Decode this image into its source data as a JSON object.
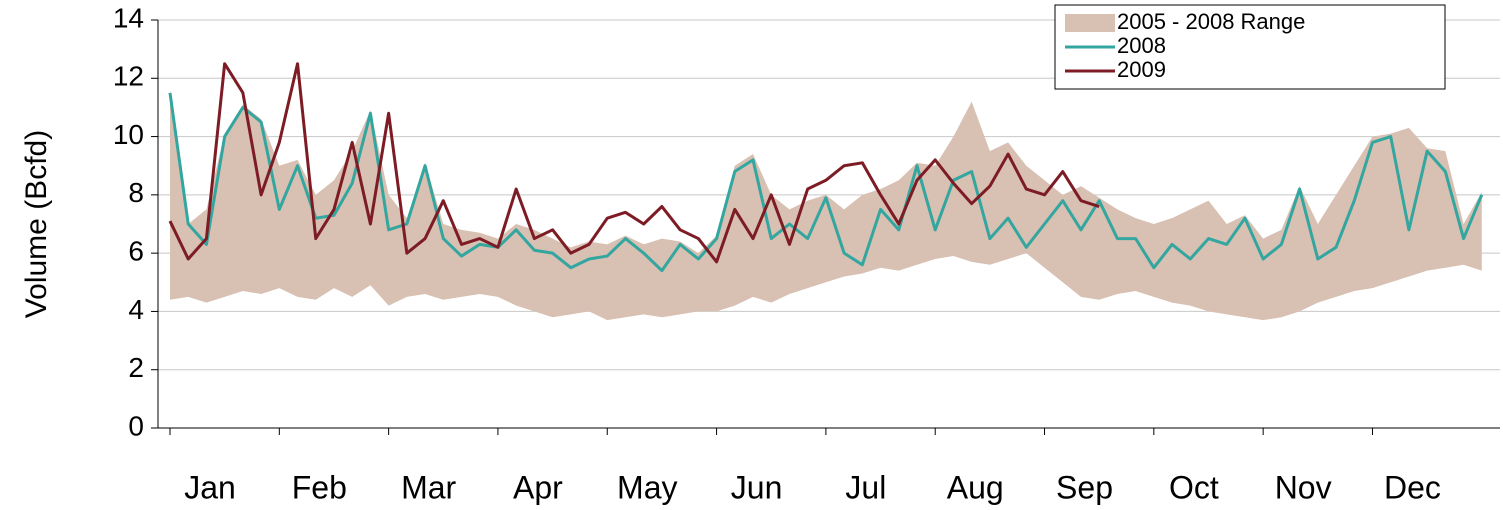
{
  "chart_data": {
    "type": "line",
    "y_label": "Volume (Bcfd)",
    "categories": [
      "Jan",
      null,
      null,
      null,
      null,
      null,
      "Feb",
      null,
      null,
      null,
      null,
      null,
      "Mar",
      null,
      null,
      null,
      null,
      null,
      "Apr",
      null,
      null,
      null,
      null,
      null,
      "May",
      null,
      null,
      null,
      null,
      null,
      "Jun",
      null,
      null,
      null,
      null,
      null,
      "Jul",
      null,
      null,
      null,
      null,
      null,
      "Aug",
      null,
      null,
      null,
      null,
      null,
      "Sep",
      null,
      null,
      null,
      null,
      null,
      "Oct",
      null,
      null,
      null,
      null,
      null,
      "Nov",
      null,
      null,
      null,
      null,
      null,
      "Dec",
      null,
      null,
      null,
      null,
      null,
      null
    ],
    "ylim": [
      0,
      14
    ],
    "yticks": [
      0,
      2,
      4,
      6,
      8,
      10,
      12,
      14
    ],
    "grid": true,
    "legend": "top-right",
    "series": [
      {
        "name": "2005 - 2008 Range",
        "color": "#d8c0b2",
        "high": [
          11.6,
          7,
          7.5,
          10.1,
          11.1,
          10.6,
          9,
          9.2,
          8,
          8.5,
          9.5,
          10.9,
          8,
          7.2,
          9.1,
          7,
          6.8,
          6.7,
          6.5,
          7,
          6.8,
          6.5,
          6.2,
          6.4,
          6.3,
          6.6,
          6.3,
          6.5,
          6.4,
          6,
          6.6,
          9.0,
          9.4,
          8,
          7.5,
          7.8,
          8,
          7.5,
          8,
          8.2,
          8.5,
          9.1,
          9,
          10,
          11.2,
          9.5,
          9.8,
          9,
          8.5,
          8,
          8.3,
          7.9,
          7.5,
          7.2,
          7,
          7.2,
          7.5,
          7.8,
          7,
          7.3,
          6.5,
          6.8,
          8.3,
          7,
          8,
          9,
          10,
          10.1,
          10.3,
          9.6,
          9.5,
          7,
          8.1
        ],
        "low": [
          4.4,
          4.5,
          4.3,
          4.5,
          4.7,
          4.6,
          4.8,
          4.5,
          4.4,
          4.8,
          4.5,
          4.9,
          4.2,
          4.5,
          4.6,
          4.4,
          4.5,
          4.6,
          4.5,
          4.2,
          4.0,
          3.8,
          3.9,
          4.0,
          3.7,
          3.8,
          3.9,
          3.8,
          3.9,
          4.0,
          4.0,
          4.2,
          4.5,
          4.3,
          4.6,
          4.8,
          5.0,
          5.2,
          5.3,
          5.5,
          5.4,
          5.6,
          5.8,
          5.9,
          5.7,
          5.6,
          5.8,
          6.0,
          5.5,
          5.0,
          4.5,
          4.4,
          4.6,
          4.7,
          4.5,
          4.3,
          4.2,
          4.0,
          3.9,
          3.8,
          3.7,
          3.8,
          4.0,
          4.3,
          4.5,
          4.7,
          4.8,
          5.0,
          5.2,
          5.4,
          5.5,
          5.6,
          5.4
        ]
      },
      {
        "name": "2008",
        "color": "#33a6a0",
        "values": [
          11.5,
          7,
          6.3,
          10,
          11,
          10.5,
          7.5,
          9,
          7.2,
          7.3,
          8.4,
          10.8,
          6.8,
          7,
          9,
          6.5,
          5.9,
          6.3,
          6.2,
          6.8,
          6.1,
          6.0,
          5.5,
          5.8,
          5.9,
          6.5,
          6.0,
          5.4,
          6.3,
          5.8,
          6.5,
          8.8,
          9.2,
          6.5,
          7.0,
          6.5,
          7.9,
          6.0,
          5.6,
          7.5,
          6.8,
          9.0,
          6.8,
          8.5,
          8.8,
          6.5,
          7.2,
          6.2,
          7.0,
          7.8,
          6.8,
          7.8,
          6.5,
          6.5,
          5.5,
          6.3,
          5.8,
          6.5,
          6.3,
          7.2,
          5.8,
          6.3,
          8.2,
          5.8,
          6.2,
          7.8,
          9.8,
          10.0,
          6.8,
          9.5,
          8.8,
          6.5,
          8.0
        ]
      },
      {
        "name": "2009",
        "color": "#7d1c24",
        "values": [
          7.1,
          5.8,
          6.5,
          12.5,
          11.5,
          8.0,
          9.8,
          12.5,
          6.5,
          7.5,
          9.8,
          7.0,
          10.8,
          6.0,
          6.5,
          7.8,
          6.3,
          6.5,
          6.2,
          8.2,
          6.5,
          6.8,
          6.0,
          6.3,
          7.2,
          7.4,
          7.0,
          7.6,
          6.8,
          6.5,
          5.7,
          7.5,
          6.5,
          8.0,
          6.3,
          8.2,
          8.5,
          9.0,
          9.1,
          8.0,
          7.0,
          8.5,
          9.2,
          8.4,
          7.7,
          8.3,
          9.4,
          8.2,
          8.0,
          8.8,
          7.8,
          7.6,
          null,
          null,
          null,
          null,
          null,
          null,
          null,
          null,
          null,
          null,
          null,
          null,
          null,
          null,
          null,
          null,
          null,
          null,
          null,
          null,
          null
        ]
      }
    ]
  }
}
